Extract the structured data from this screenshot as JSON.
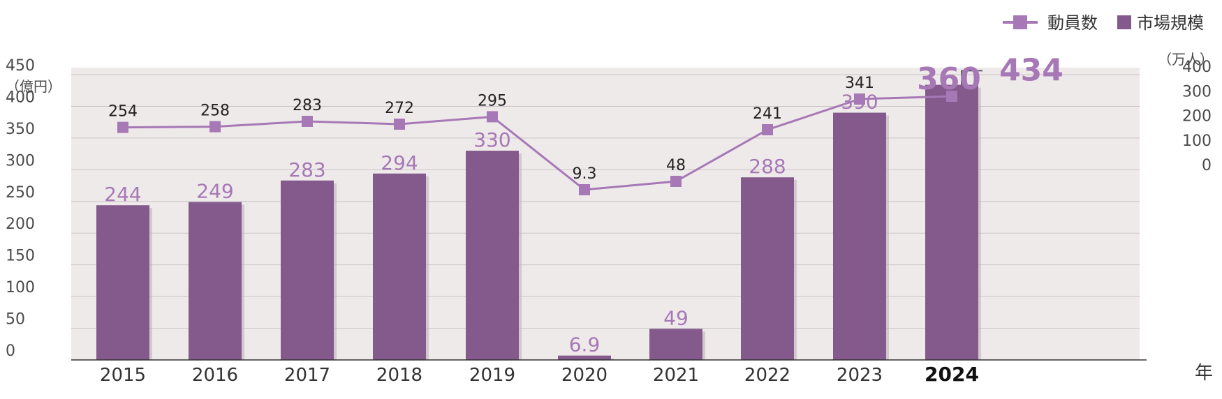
{
  "chart_data": {
    "type": "bar",
    "categories": [
      "2015",
      "2016",
      "2017",
      "2018",
      "2019",
      "2020",
      "2021",
      "2022",
      "2023",
      "2024"
    ],
    "highlight_category": "2024",
    "xlabel": "年",
    "series": [
      {
        "name": "市場規模",
        "type": "bar",
        "axis": "left",
        "values": [
          244,
          249,
          283,
          294,
          330,
          6.9,
          49,
          288,
          390,
          434
        ],
        "labels": [
          "244",
          "249",
          "283",
          "294",
          "330",
          "6.9",
          "49",
          "288",
          "390",
          "434"
        ],
        "color": "#84598c",
        "label_color": "#a678b6"
      },
      {
        "name": "動員数",
        "type": "line",
        "axis": "right",
        "values": [
          254,
          258,
          283,
          272,
          295,
          9.3,
          48,
          241,
          341,
          360
        ],
        "labels": [
          "254",
          "258",
          "283",
          "272",
          "295",
          "9.3",
          "48",
          "241",
          "341",
          "360"
        ],
        "color": "#a678b6"
      }
    ],
    "left_axis": {
      "unit": "（億円）",
      "ylim": [
        0,
        450
      ],
      "ticks": [
        "0",
        "50",
        "100",
        "150",
        "200",
        "250",
        "300",
        "350",
        "400",
        "450"
      ]
    },
    "right_axis": {
      "unit": "（万人）",
      "ylim": [
        0,
        400
      ],
      "ticks": [
        "0",
        "100",
        "200",
        "300",
        "400"
      ]
    },
    "grid": true,
    "legend_position": "top-right",
    "colors": {
      "plot_background": "#efeaea",
      "gridline": "#c9c3c6",
      "axis": "#333333"
    }
  }
}
